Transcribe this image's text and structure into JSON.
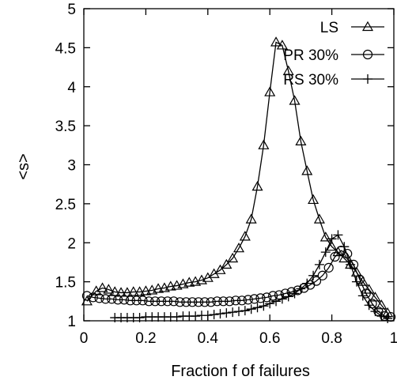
{
  "chart_data": {
    "type": "line",
    "xlabel": "Fraction f of failures",
    "ylabel": "<s>",
    "xlim": [
      0,
      1
    ],
    "ylim": [
      1,
      5
    ],
    "xticks": [
      "0",
      "0.2",
      "0.4",
      "0.6",
      "0.8",
      "1"
    ],
    "yticks": [
      "1",
      "1.5",
      "2",
      "2.5",
      "3",
      "3.5",
      "4",
      "4.5",
      "5"
    ],
    "legend_position": "top-right",
    "grid": false,
    "series": [
      {
        "name": "LS",
        "marker": "triangle",
        "x": [
          0.01,
          0.04,
          0.06,
          0.08,
          0.1,
          0.12,
          0.14,
          0.16,
          0.18,
          0.2,
          0.22,
          0.24,
          0.26,
          0.28,
          0.3,
          0.32,
          0.34,
          0.36,
          0.38,
          0.4,
          0.42,
          0.44,
          0.46,
          0.48,
          0.5,
          0.52,
          0.54,
          0.56,
          0.58,
          0.6,
          0.62,
          0.64,
          0.66,
          0.68,
          0.7,
          0.72,
          0.74,
          0.76,
          0.78,
          0.8,
          0.82,
          0.84,
          0.86,
          0.88,
          0.9,
          0.92,
          0.94,
          0.96,
          0.98
        ],
        "y": [
          1.25,
          1.38,
          1.42,
          1.4,
          1.37,
          1.36,
          1.36,
          1.37,
          1.37,
          1.38,
          1.39,
          1.41,
          1.42,
          1.44,
          1.45,
          1.47,
          1.49,
          1.5,
          1.52,
          1.55,
          1.6,
          1.65,
          1.72,
          1.8,
          1.93,
          2.08,
          2.3,
          2.72,
          3.25,
          3.93,
          4.57,
          4.53,
          4.2,
          3.82,
          3.3,
          2.92,
          2.55,
          2.3,
          2.07,
          1.95,
          1.88,
          1.8,
          1.72,
          1.62,
          1.5,
          1.4,
          1.3,
          1.2,
          1.1
        ]
      },
      {
        "name": "PR 30%",
        "marker": "circle",
        "x": [
          0.01,
          0.03,
          0.05,
          0.07,
          0.09,
          0.11,
          0.13,
          0.15,
          0.17,
          0.19,
          0.21,
          0.23,
          0.25,
          0.27,
          0.29,
          0.31,
          0.33,
          0.35,
          0.37,
          0.39,
          0.41,
          0.43,
          0.45,
          0.47,
          0.49,
          0.51,
          0.53,
          0.55,
          0.57,
          0.59,
          0.61,
          0.63,
          0.65,
          0.67,
          0.69,
          0.71,
          0.73,
          0.75,
          0.77,
          0.79,
          0.81,
          0.83,
          0.85,
          0.87,
          0.89,
          0.91,
          0.93,
          0.95,
          0.97,
          0.99
        ],
        "y": [
          1.32,
          1.3,
          1.29,
          1.28,
          1.28,
          1.27,
          1.27,
          1.26,
          1.26,
          1.26,
          1.25,
          1.25,
          1.25,
          1.25,
          1.25,
          1.24,
          1.24,
          1.24,
          1.24,
          1.24,
          1.24,
          1.25,
          1.25,
          1.25,
          1.26,
          1.26,
          1.27,
          1.28,
          1.29,
          1.3,
          1.32,
          1.33,
          1.35,
          1.37,
          1.39,
          1.42,
          1.46,
          1.51,
          1.58,
          1.68,
          1.82,
          1.9,
          1.86,
          1.72,
          1.53,
          1.35,
          1.22,
          1.12,
          1.06,
          1.05
        ]
      },
      {
        "name": "RS 30%",
        "marker": "plus",
        "x": [
          0.1,
          0.12,
          0.14,
          0.16,
          0.18,
          0.2,
          0.22,
          0.24,
          0.26,
          0.28,
          0.3,
          0.32,
          0.34,
          0.36,
          0.38,
          0.4,
          0.42,
          0.44,
          0.46,
          0.48,
          0.5,
          0.52,
          0.54,
          0.56,
          0.58,
          0.6,
          0.62,
          0.64,
          0.66,
          0.68,
          0.7,
          0.72,
          0.74,
          0.76,
          0.78,
          0.8,
          0.82,
          0.84,
          0.86,
          0.88,
          0.9,
          0.92,
          0.94,
          0.96,
          0.98
        ],
        "y": [
          1.04,
          1.04,
          1.04,
          1.04,
          1.04,
          1.05,
          1.05,
          1.05,
          1.05,
          1.05,
          1.05,
          1.06,
          1.06,
          1.06,
          1.07,
          1.07,
          1.08,
          1.09,
          1.1,
          1.11,
          1.12,
          1.13,
          1.15,
          1.17,
          1.19,
          1.22,
          1.25,
          1.28,
          1.31,
          1.35,
          1.41,
          1.48,
          1.58,
          1.72,
          1.88,
          2.05,
          2.1,
          1.95,
          1.72,
          1.5,
          1.32,
          1.2,
          1.12,
          1.06,
          1.03
        ]
      }
    ]
  }
}
